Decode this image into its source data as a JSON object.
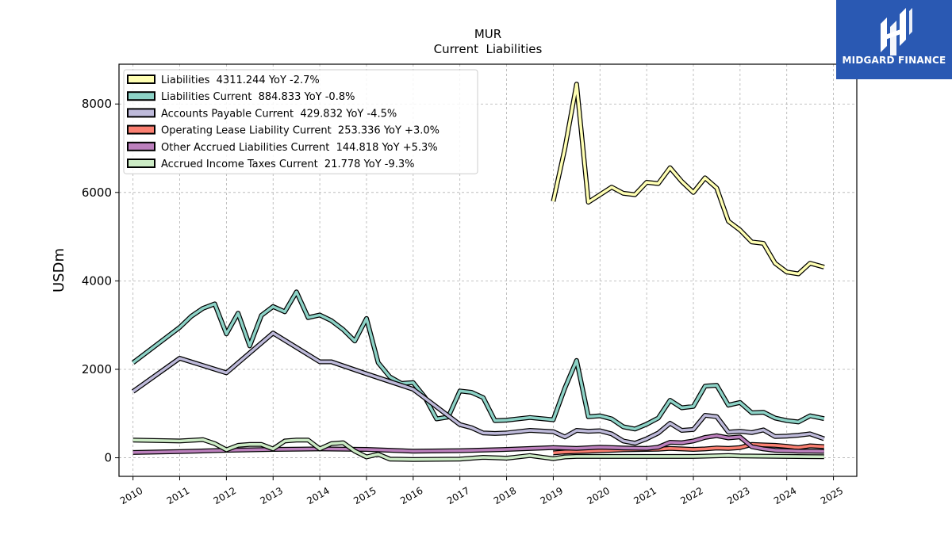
{
  "brand": {
    "name": "MIDGARD FINANCE",
    "color": "#2a59b3"
  },
  "chart_data": {
    "type": "line",
    "title": "MUR",
    "subtitle": "Current  Liabilities",
    "xlabel": "",
    "ylabel": "USDm",
    "xlim": [
      2009.7,
      2025.5
    ],
    "ylim": [
      -420,
      8900
    ],
    "x_ticks": [
      "2010",
      "2011",
      "2012",
      "2013",
      "2014",
      "2015",
      "2016",
      "2017",
      "2018",
      "2019",
      "2020",
      "2021",
      "2022",
      "2023",
      "2024",
      "2025"
    ],
    "y_ticks": [
      0,
      2000,
      4000,
      6000,
      8000
    ],
    "y_tick_labels": [
      "0",
      "2000",
      "4000",
      "6000",
      "8000"
    ],
    "grid": true,
    "legend_position": "top-left",
    "series": [
      {
        "name": "Liabilities  4311.244 YoY -2.7%",
        "color": "#ffffb3",
        "points": [
          [
            2019.0,
            5800
          ],
          [
            2019.25,
            7000
          ],
          [
            2019.5,
            8450
          ],
          [
            2019.75,
            5780
          ],
          [
            2020.0,
            5950
          ],
          [
            2020.25,
            6120
          ],
          [
            2020.5,
            5980
          ],
          [
            2020.75,
            5950
          ],
          [
            2021.0,
            6230
          ],
          [
            2021.25,
            6200
          ],
          [
            2021.5,
            6560
          ],
          [
            2021.75,
            6250
          ],
          [
            2022.0,
            6000
          ],
          [
            2022.25,
            6330
          ],
          [
            2022.5,
            6100
          ],
          [
            2022.75,
            5350
          ],
          [
            2023.0,
            5150
          ],
          [
            2023.25,
            4880
          ],
          [
            2023.5,
            4850
          ],
          [
            2023.75,
            4400
          ],
          [
            2024.0,
            4200
          ],
          [
            2024.25,
            4160
          ],
          [
            2024.5,
            4400
          ],
          [
            2024.8,
            4311
          ]
        ]
      },
      {
        "name": "Liabilities Current  884.833 YoY -0.8%",
        "color": "#8dd3c7",
        "points": [
          [
            2010.0,
            2150
          ],
          [
            2011.0,
            2950
          ],
          [
            2011.25,
            3200
          ],
          [
            2011.5,
            3380
          ],
          [
            2011.75,
            3480
          ],
          [
            2012.0,
            2800
          ],
          [
            2012.25,
            3270
          ],
          [
            2012.5,
            2530
          ],
          [
            2012.75,
            3220
          ],
          [
            2013.0,
            3420
          ],
          [
            2013.25,
            3300
          ],
          [
            2013.5,
            3750
          ],
          [
            2013.75,
            3170
          ],
          [
            2014.0,
            3230
          ],
          [
            2014.25,
            3100
          ],
          [
            2014.5,
            2900
          ],
          [
            2014.75,
            2640
          ],
          [
            2015.0,
            3150
          ],
          [
            2015.25,
            2150
          ],
          [
            2015.5,
            1830
          ],
          [
            2015.75,
            1680
          ],
          [
            2016.0,
            1700
          ],
          [
            2016.25,
            1370
          ],
          [
            2016.5,
            880
          ],
          [
            2016.75,
            920
          ],
          [
            2017.0,
            1510
          ],
          [
            2017.25,
            1480
          ],
          [
            2017.5,
            1360
          ],
          [
            2017.75,
            840
          ],
          [
            2018.0,
            850
          ],
          [
            2018.5,
            910
          ],
          [
            2019.0,
            860
          ],
          [
            2019.25,
            1580
          ],
          [
            2019.5,
            2200
          ],
          [
            2019.75,
            930
          ],
          [
            2020.0,
            950
          ],
          [
            2020.25,
            880
          ],
          [
            2020.5,
            700
          ],
          [
            2020.75,
            650
          ],
          [
            2021.0,
            760
          ],
          [
            2021.25,
            900
          ],
          [
            2021.5,
            1300
          ],
          [
            2021.75,
            1130
          ],
          [
            2022.0,
            1160
          ],
          [
            2022.25,
            1620
          ],
          [
            2022.5,
            1640
          ],
          [
            2022.75,
            1190
          ],
          [
            2023.0,
            1250
          ],
          [
            2023.25,
            1020
          ],
          [
            2023.5,
            1030
          ],
          [
            2023.75,
            900
          ],
          [
            2024.0,
            840
          ],
          [
            2024.25,
            810
          ],
          [
            2024.5,
            950
          ],
          [
            2024.8,
            885
          ]
        ]
      },
      {
        "name": "Accounts Payable Current  429.832 YoY -4.5%",
        "color": "#bebada",
        "points": [
          [
            2010.0,
            1500
          ],
          [
            2011.0,
            2250
          ],
          [
            2012.0,
            1920
          ],
          [
            2013.0,
            2820
          ],
          [
            2014.0,
            2170
          ],
          [
            2014.25,
            2170
          ],
          [
            2015.0,
            1900
          ],
          [
            2016.0,
            1550
          ],
          [
            2016.5,
            1150
          ],
          [
            2017.0,
            750
          ],
          [
            2017.25,
            680
          ],
          [
            2017.5,
            560
          ],
          [
            2017.75,
            550
          ],
          [
            2018.0,
            560
          ],
          [
            2018.5,
            620
          ],
          [
            2019.0,
            590
          ],
          [
            2019.25,
            470
          ],
          [
            2019.5,
            620
          ],
          [
            2019.75,
            600
          ],
          [
            2020.0,
            610
          ],
          [
            2020.25,
            540
          ],
          [
            2020.5,
            380
          ],
          [
            2020.75,
            330
          ],
          [
            2021.0,
            430
          ],
          [
            2021.25,
            560
          ],
          [
            2021.5,
            780
          ],
          [
            2021.75,
            620
          ],
          [
            2022.0,
            640
          ],
          [
            2022.25,
            960
          ],
          [
            2022.5,
            930
          ],
          [
            2022.75,
            580
          ],
          [
            2023.0,
            600
          ],
          [
            2023.25,
            570
          ],
          [
            2023.5,
            630
          ],
          [
            2023.75,
            480
          ],
          [
            2024.0,
            490
          ],
          [
            2024.25,
            510
          ],
          [
            2024.5,
            540
          ],
          [
            2024.8,
            430
          ]
        ]
      },
      {
        "name": "Operating Lease Liability Current  253.336 YoY +3.0%",
        "color": "#fb8072",
        "points": [
          [
            2019.0,
            110
          ],
          [
            2019.25,
            130
          ],
          [
            2019.5,
            140
          ],
          [
            2019.75,
            150
          ],
          [
            2020.0,
            160
          ],
          [
            2020.25,
            170
          ],
          [
            2020.5,
            180
          ],
          [
            2020.75,
            185
          ],
          [
            2021.0,
            190
          ],
          [
            2021.25,
            195
          ],
          [
            2021.5,
            210
          ],
          [
            2021.75,
            200
          ],
          [
            2022.0,
            190
          ],
          [
            2022.25,
            200
          ],
          [
            2022.5,
            220
          ],
          [
            2022.75,
            210
          ],
          [
            2023.0,
            230
          ],
          [
            2023.25,
            300
          ],
          [
            2023.5,
            290
          ],
          [
            2023.75,
            280
          ],
          [
            2024.0,
            260
          ],
          [
            2024.25,
            230
          ],
          [
            2024.5,
            270
          ],
          [
            2024.8,
            253
          ]
        ]
      },
      {
        "name": "Other Accrued Liabilities Current  144.818 YoY +5.3%",
        "color": "#bc80bd",
        "points": [
          [
            2010.0,
            120
          ],
          [
            2011.0,
            140
          ],
          [
            2012.0,
            170
          ],
          [
            2013.0,
            190
          ],
          [
            2014.0,
            200
          ],
          [
            2015.0,
            190
          ],
          [
            2016.0,
            150
          ],
          [
            2017.0,
            160
          ],
          [
            2018.0,
            190
          ],
          [
            2019.0,
            230
          ],
          [
            2019.5,
            210
          ],
          [
            2020.0,
            240
          ],
          [
            2020.5,
            220
          ],
          [
            2021.0,
            210
          ],
          [
            2021.25,
            240
          ],
          [
            2021.5,
            350
          ],
          [
            2021.75,
            340
          ],
          [
            2022.0,
            380
          ],
          [
            2022.25,
            460
          ],
          [
            2022.5,
            500
          ],
          [
            2022.75,
            450
          ],
          [
            2023.0,
            470
          ],
          [
            2023.25,
            250
          ],
          [
            2023.5,
            200
          ],
          [
            2023.75,
            170
          ],
          [
            2024.0,
            160
          ],
          [
            2024.25,
            150
          ],
          [
            2024.5,
            150
          ],
          [
            2024.8,
            145
          ]
        ]
      },
      {
        "name": "Accrued Income Taxes Current  21.778 YoY -9.3%",
        "color": "#ccebc5",
        "points": [
          [
            2010.0,
            400
          ],
          [
            2011.0,
            380
          ],
          [
            2011.5,
            410
          ],
          [
            2011.75,
            320
          ],
          [
            2012.0,
            180
          ],
          [
            2012.25,
            280
          ],
          [
            2012.5,
            300
          ],
          [
            2012.75,
            300
          ],
          [
            2013.0,
            200
          ],
          [
            2013.25,
            380
          ],
          [
            2013.5,
            400
          ],
          [
            2013.75,
            400
          ],
          [
            2014.0,
            200
          ],
          [
            2014.25,
            320
          ],
          [
            2014.5,
            340
          ],
          [
            2014.75,
            150
          ],
          [
            2015.0,
            20
          ],
          [
            2015.25,
            80
          ],
          [
            2015.5,
            -30
          ],
          [
            2016.0,
            -40
          ],
          [
            2017.0,
            -30
          ],
          [
            2017.5,
            10
          ],
          [
            2018.0,
            -10
          ],
          [
            2018.5,
            50
          ],
          [
            2019.0,
            -20
          ],
          [
            2019.25,
            20
          ],
          [
            2019.5,
            30
          ],
          [
            2020.0,
            30
          ],
          [
            2021.0,
            30
          ],
          [
            2022.0,
            30
          ],
          [
            2022.75,
            50
          ],
          [
            2023.0,
            40
          ],
          [
            2024.0,
            30
          ],
          [
            2024.8,
            22
          ]
        ]
      }
    ]
  }
}
